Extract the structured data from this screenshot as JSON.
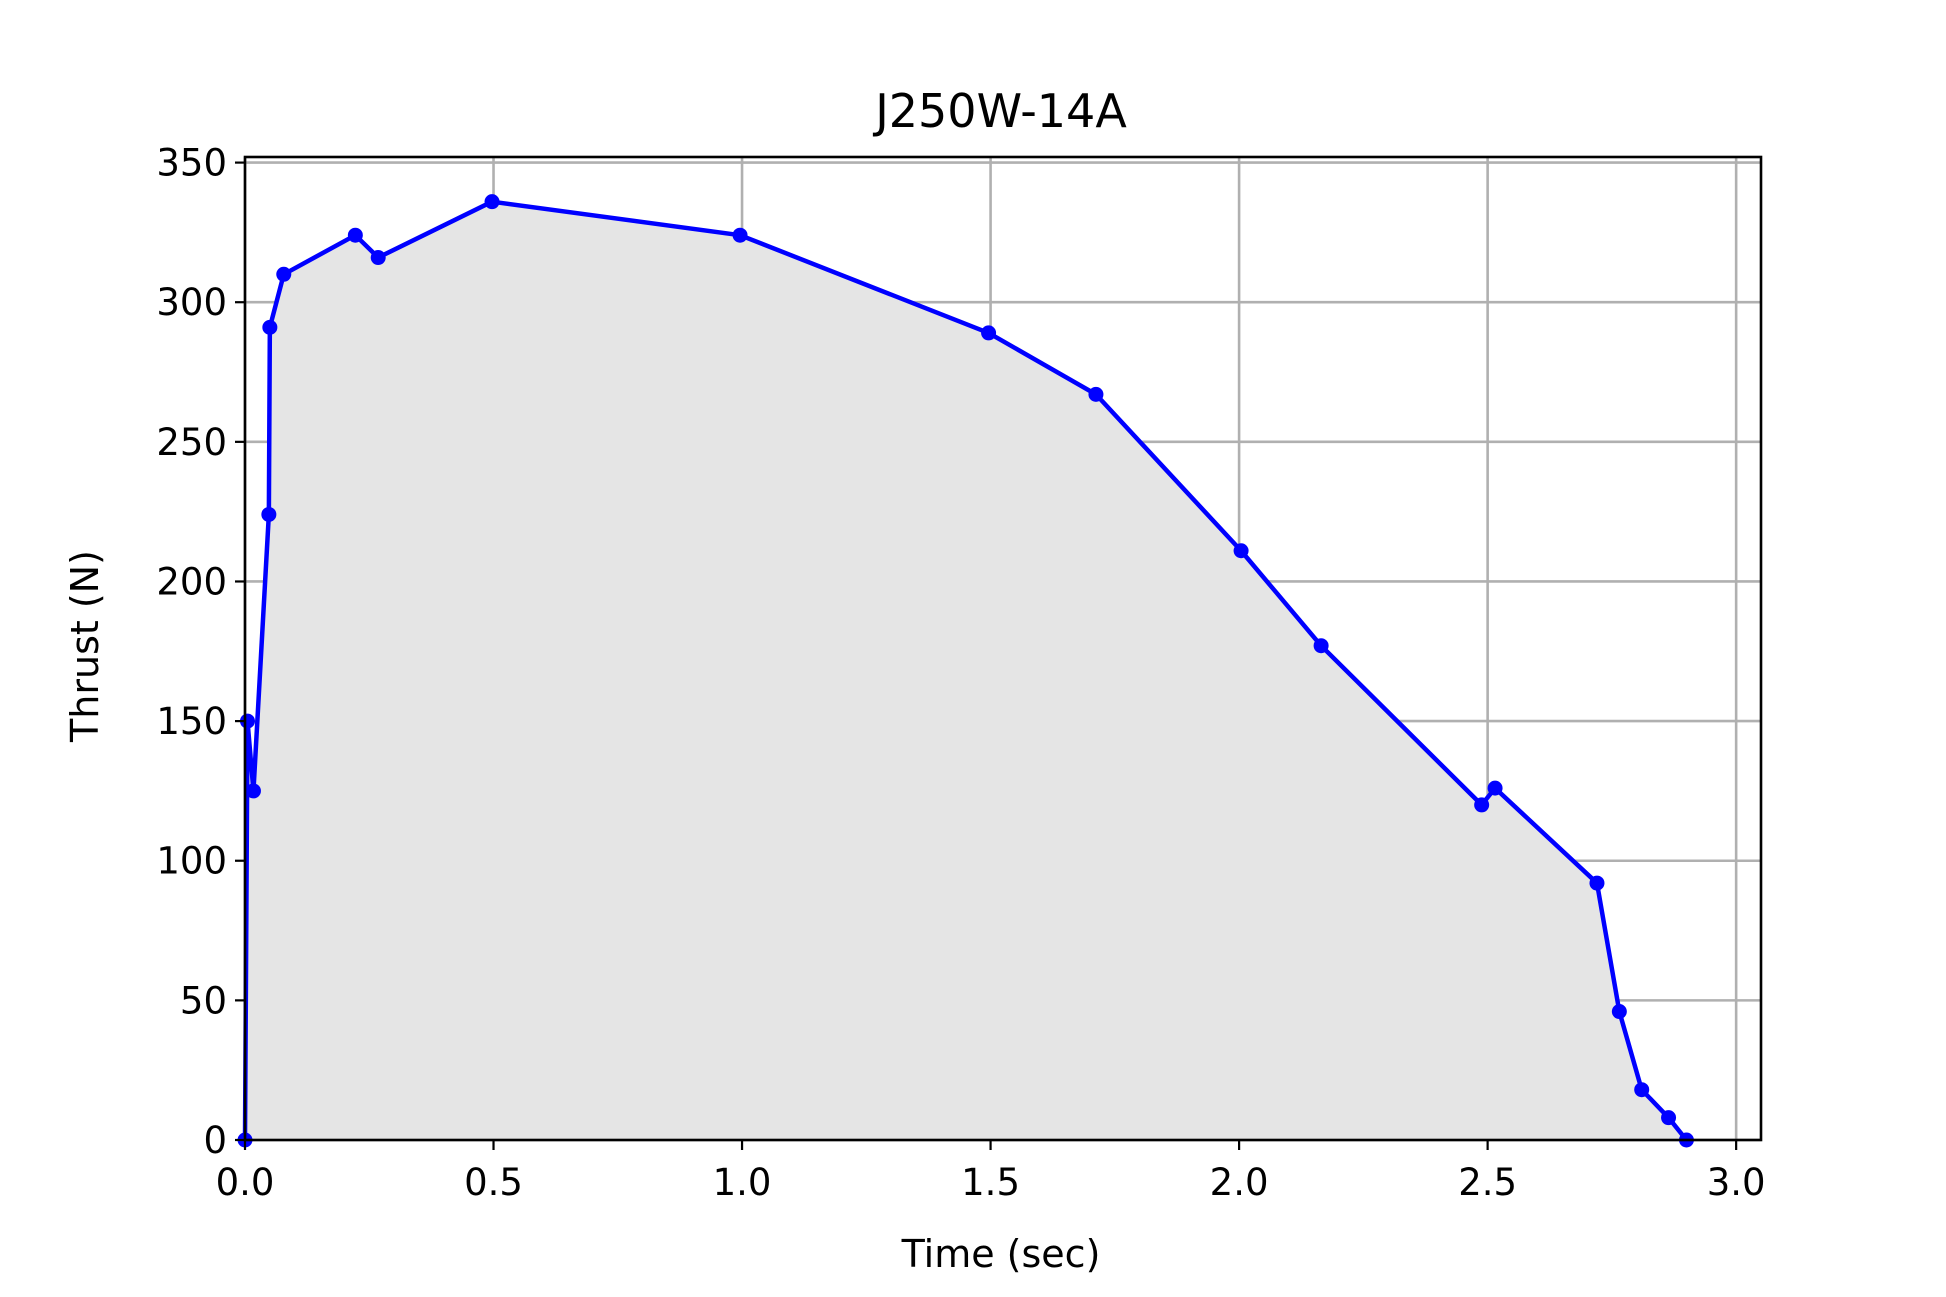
{
  "chart_data": {
    "type": "line",
    "title": "J250W-14A",
    "xlabel": "Time (sec)",
    "ylabel": "Thrust (N)",
    "xlim": [
      0,
      3.05
    ],
    "ylim": [
      0,
      352
    ],
    "xticks": [
      0.0,
      0.5,
      1.0,
      1.5,
      2.0,
      2.5,
      3.0
    ],
    "xtick_labels": [
      "0.0",
      "0.5",
      "1.0",
      "1.5",
      "2.0",
      "2.5",
      "3.0"
    ],
    "yticks": [
      0,
      50,
      100,
      150,
      200,
      250,
      300,
      350
    ],
    "ytick_labels": [
      "0",
      "50",
      "100",
      "150",
      "200",
      "250",
      "300",
      "350"
    ],
    "grid": true,
    "line_color": "#0000ff",
    "fill_color": "#e5e5e5",
    "series": [
      {
        "x": [
          0.0,
          0.005,
          0.017,
          0.048,
          0.05,
          0.078,
          0.222,
          0.268,
          0.497,
          0.996,
          1.496,
          1.712,
          2.004,
          2.165,
          2.488,
          2.515,
          2.72,
          2.765,
          2.81,
          2.864,
          2.9
        ],
        "y": [
          0,
          150,
          125,
          224,
          291,
          310,
          324,
          316,
          336,
          324,
          289,
          267,
          211,
          177,
          120,
          126,
          92,
          46,
          18,
          8,
          0
        ]
      }
    ]
  }
}
